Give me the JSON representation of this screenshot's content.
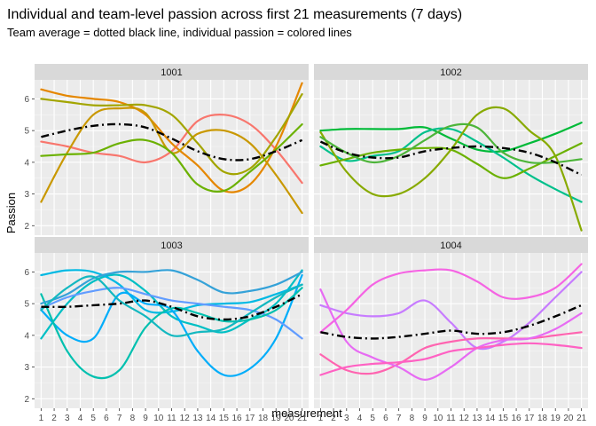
{
  "chart_data": {
    "type": "line",
    "title": "Individual and team-level passion across first 21 measurements (7 days)",
    "subtitle": "Team average = dotted black line, individual passion = colored lines",
    "xlabel": "measurement",
    "ylabel": "Passion",
    "x_ticks": [
      "1",
      "2",
      "3",
      "4",
      "5",
      "6",
      "7",
      "8",
      "9",
      "10",
      "11",
      "12",
      "13",
      "14",
      "15",
      "16",
      "17",
      "18",
      "19",
      "20",
      "21"
    ],
    "y_ticks": [
      2,
      3,
      4,
      5,
      6
    ],
    "xlim": [
      0.5,
      21.5
    ],
    "ylim": [
      1.7,
      6.6
    ],
    "grid": true,
    "facet_layout": "2x2",
    "panels": [
      {
        "label": "1001",
        "team_average": {
          "x": [
            1,
            3,
            5,
            7,
            9,
            11,
            13,
            15,
            17,
            19,
            21
          ],
          "y": [
            4.8,
            5.0,
            5.15,
            5.2,
            5.1,
            4.75,
            4.35,
            4.1,
            4.1,
            4.35,
            4.7
          ]
        },
        "series": [
          {
            "color": "#F8766D",
            "x": [
              1,
              3,
              5,
              7,
              9,
              11,
              13,
              15,
              17,
              19,
              21
            ],
            "y": [
              4.65,
              4.5,
              4.3,
              4.2,
              4.0,
              4.35,
              5.3,
              5.5,
              5.2,
              4.4,
              3.35
            ]
          },
          {
            "color": "#E58700",
            "x": [
              1,
              3,
              5,
              7,
              9,
              11,
              13,
              15,
              17,
              19,
              21
            ],
            "y": [
              6.3,
              6.1,
              6.0,
              5.9,
              5.5,
              4.6,
              3.9,
              3.1,
              3.3,
              4.5,
              6.5
            ]
          },
          {
            "color": "#C99800",
            "x": [
              1,
              3,
              5,
              7,
              9,
              11,
              13,
              15,
              17,
              19,
              21
            ],
            "y": [
              2.75,
              4.3,
              5.5,
              5.7,
              5.55,
              4.3,
              4.9,
              5.0,
              4.6,
              3.6,
              2.4
            ]
          },
          {
            "color": "#A3A500",
            "x": [
              1,
              3,
              5,
              7,
              9,
              11,
              13,
              15,
              17,
              19,
              21
            ],
            "y": [
              6.0,
              5.9,
              5.8,
              5.8,
              5.8,
              5.5,
              4.6,
              3.7,
              3.8,
              4.8,
              6.15
            ]
          },
          {
            "color": "#6BB100",
            "x": [
              1,
              3,
              5,
              7,
              9,
              11,
              13,
              15,
              17,
              19,
              21
            ],
            "y": [
              4.2,
              4.25,
              4.3,
              4.6,
              4.7,
              4.3,
              3.3,
              3.1,
              3.7,
              4.4,
              5.2
            ]
          }
        ]
      },
      {
        "label": "1002",
        "team_average": {
          "x": [
            1,
            3,
            5,
            7,
            9,
            11,
            13,
            15,
            17,
            19,
            21
          ],
          "y": [
            4.65,
            4.3,
            4.15,
            4.15,
            4.35,
            4.45,
            4.5,
            4.45,
            4.3,
            4.0,
            3.6
          ]
        },
        "series": [
          {
            "color": "#00BA38",
            "x": [
              1,
              3,
              5,
              7,
              9,
              11,
              13,
              15,
              17,
              19,
              21
            ],
            "y": [
              5.0,
              5.05,
              5.05,
              5.05,
              5.1,
              4.75,
              4.4,
              4.35,
              4.6,
              4.9,
              5.25
            ]
          },
          {
            "color": "#00C08B",
            "x": [
              1,
              3,
              5,
              7,
              9,
              11,
              13,
              15,
              17,
              19,
              21
            ],
            "y": [
              4.5,
              4.05,
              4.2,
              4.35,
              4.95,
              5.05,
              4.65,
              4.15,
              3.6,
              3.15,
              2.75
            ]
          },
          {
            "color": "#6BB100",
            "x": [
              1,
              3,
              5,
              7,
              9,
              11,
              13,
              15,
              17,
              19,
              21
            ],
            "y": [
              3.9,
              4.1,
              4.3,
              4.4,
              4.45,
              4.4,
              3.95,
              3.5,
              3.8,
              4.2,
              4.6
            ]
          },
          {
            "color": "#88AA00",
            "x": [
              1,
              3,
              5,
              7,
              9,
              11,
              13,
              15,
              17,
              19,
              21
            ],
            "y": [
              4.95,
              3.7,
              3.0,
              3.0,
              3.5,
              4.4,
              5.5,
              5.7,
              5.0,
              4.2,
              1.85
            ]
          },
          {
            "color": "#4DB53A",
            "x": [
              1,
              3,
              5,
              7,
              9,
              11,
              13,
              15,
              17,
              19,
              21
            ],
            "y": [
              4.8,
              4.3,
              4.0,
              4.2,
              4.7,
              5.15,
              5.1,
              4.3,
              4.0,
              4.0,
              4.1
            ]
          }
        ]
      },
      {
        "label": "1003",
        "team_average": {
          "x": [
            1,
            3,
            5,
            7,
            9,
            11,
            13,
            15,
            17,
            19,
            21
          ],
          "y": [
            4.9,
            4.9,
            4.95,
            5.0,
            5.1,
            4.9,
            4.6,
            4.5,
            4.6,
            4.9,
            5.3
          ]
        },
        "series": [
          {
            "color": "#00BFC4",
            "x": [
              1,
              3,
              5,
              7,
              9,
              11,
              13,
              15,
              17,
              19,
              21
            ],
            "y": [
              3.9,
              5.0,
              5.7,
              5.9,
              5.4,
              4.6,
              4.3,
              4.1,
              4.5,
              5.0,
              6.05
            ]
          },
          {
            "color": "#00B9E3",
            "x": [
              1,
              3,
              5,
              7,
              9,
              11,
              13,
              15,
              17,
              19,
              21
            ],
            "y": [
              5.9,
              6.05,
              6.0,
              5.6,
              4.8,
              4.75,
              4.95,
              5.0,
              5.05,
              5.3,
              5.6
            ]
          },
          {
            "color": "#00ADFA",
            "x": [
              1,
              3,
              5,
              7,
              9,
              11,
              13,
              15,
              17,
              19,
              21
            ],
            "y": [
              4.8,
              4.0,
              3.9,
              5.3,
              5.0,
              4.8,
              3.5,
              2.75,
              2.95,
              3.9,
              5.9
            ]
          },
          {
            "color": "#619CFF",
            "x": [
              1,
              3,
              5,
              7,
              9,
              11,
              13,
              15,
              17,
              19,
              21
            ],
            "y": [
              4.85,
              5.2,
              5.4,
              5.5,
              5.3,
              5.1,
              5.0,
              4.9,
              4.8,
              4.5,
              3.9
            ]
          },
          {
            "color": "#00C0AF",
            "x": [
              1,
              3,
              5,
              7,
              9,
              11,
              13,
              15,
              17,
              19,
              21
            ],
            "y": [
              5.3,
              3.5,
              2.7,
              2.9,
              4.25,
              4.85,
              4.7,
              4.45,
              4.5,
              4.8,
              5.5
            ]
          },
          {
            "color": "#35A2D8",
            "x": [
              1,
              3,
              5,
              7,
              9,
              11,
              13,
              15,
              17,
              19,
              21
            ],
            "y": [
              5.0,
              5.3,
              5.8,
              6.0,
              6.0,
              6.05,
              5.75,
              5.35,
              5.4,
              5.6,
              6.0
            ]
          },
          {
            "color": "#13B8C0",
            "x": [
              1,
              3,
              5,
              7,
              9,
              11,
              13,
              15,
              17,
              19,
              21
            ],
            "y": [
              4.8,
              5.5,
              5.85,
              5.1,
              4.6,
              4.0,
              4.1,
              4.2,
              4.7,
              5.2,
              5.6
            ]
          }
        ]
      },
      {
        "label": "1004",
        "team_average": {
          "x": [
            1,
            3,
            5,
            7,
            9,
            11,
            13,
            15,
            17,
            19,
            21
          ],
          "y": [
            4.1,
            3.95,
            3.9,
            3.95,
            4.05,
            4.15,
            4.05,
            4.1,
            4.3,
            4.6,
            4.95
          ]
        },
        "series": [
          {
            "color": "#C77CFF",
            "x": [
              1,
              3,
              5,
              7,
              9,
              11,
              13,
              15,
              17,
              19,
              21
            ],
            "y": [
              4.95,
              4.7,
              4.6,
              4.7,
              5.1,
              4.4,
              3.6,
              3.8,
              4.4,
              5.2,
              6.0
            ]
          },
          {
            "color": "#F564E3",
            "x": [
              1,
              3,
              5,
              7,
              9,
              11,
              13,
              15,
              17,
              19,
              21
            ],
            "y": [
              4.1,
              4.8,
              5.6,
              5.95,
              6.05,
              6.05,
              5.7,
              5.2,
              5.2,
              5.5,
              6.25
            ]
          },
          {
            "color": "#FF64B0",
            "x": [
              1,
              3,
              5,
              7,
              9,
              11,
              13,
              15,
              17,
              19,
              21
            ],
            "y": [
              3.4,
              2.9,
              2.8,
              3.1,
              3.6,
              3.8,
              3.9,
              3.9,
              3.9,
              4.0,
              4.1
            ]
          },
          {
            "color": "#E76BF3",
            "x": [
              1,
              3,
              5,
              7,
              9,
              11,
              13,
              15,
              17,
              19,
              21
            ],
            "y": [
              5.45,
              3.8,
              3.3,
              3.0,
              2.6,
              3.0,
              3.6,
              3.85,
              3.9,
              4.2,
              4.7
            ]
          },
          {
            "color": "#FF61C3",
            "x": [
              1,
              3,
              5,
              7,
              9,
              11,
              13,
              15,
              17,
              19,
              21
            ],
            "y": [
              2.75,
              3.0,
              3.1,
              3.15,
              3.25,
              3.5,
              3.6,
              3.7,
              3.75,
              3.7,
              3.6
            ]
          }
        ]
      }
    ]
  },
  "colors": {
    "panel_bg": "#ebebeb",
    "strip_bg": "#d9d9d9",
    "grid_major": "#ffffff",
    "average_line": "#000000"
  }
}
